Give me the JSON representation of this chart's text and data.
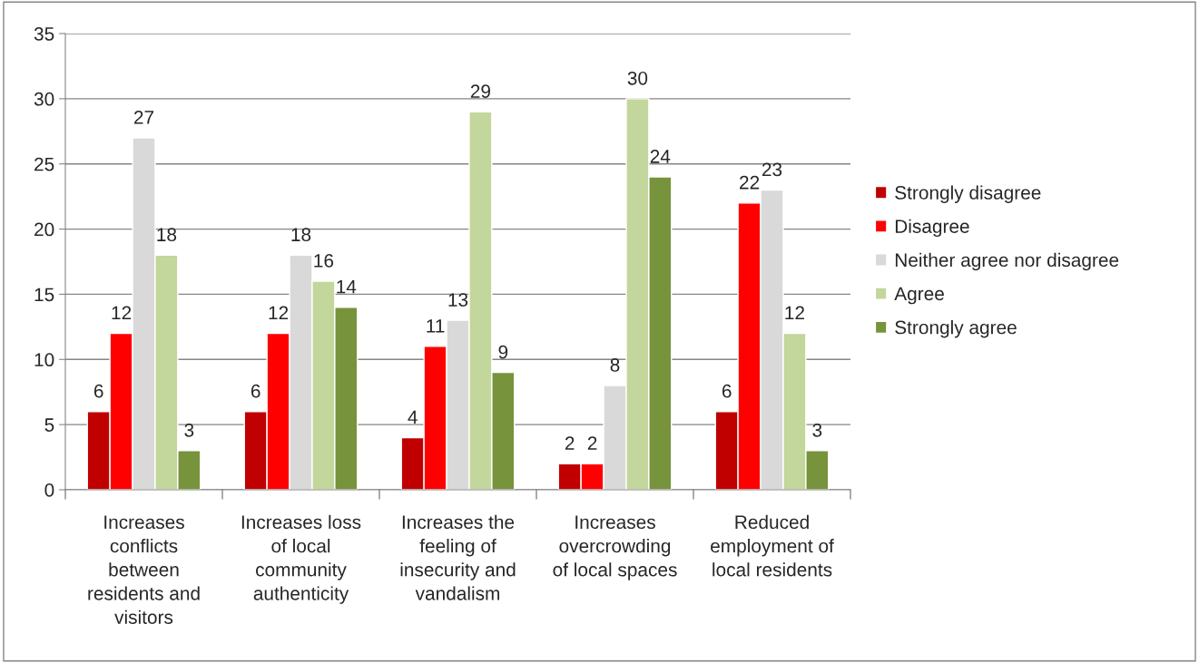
{
  "chart_data": {
    "type": "bar",
    "categories": [
      "Increases\nconflicts\nbetween\nresidents and\nvisitors",
      "Increases loss\nof local\ncommunity\nauthenticity",
      "Increases the\nfeeling of\ninsecurity and\nvandalism",
      "Increases\novercrowding\nof local spaces",
      "Reduced\nemployment of\nlocal residents"
    ],
    "series": [
      {
        "name": "Strongly disagree",
        "color": "#c00000",
        "values": [
          6,
          6,
          4,
          2,
          6
        ]
      },
      {
        "name": "Disagree",
        "color": "#ff0000",
        "values": [
          12,
          12,
          11,
          2,
          22
        ]
      },
      {
        "name": "Neither agree nor disagree",
        "color": "#d9d9d9",
        "values": [
          27,
          18,
          13,
          8,
          23
        ]
      },
      {
        "name": "Agree",
        "color": "#c3d69b",
        "values": [
          18,
          16,
          29,
          30,
          12
        ]
      },
      {
        "name": "Strongly agree",
        "color": "#77933c",
        "values": [
          3,
          14,
          9,
          24,
          3
        ]
      }
    ],
    "ylim": [
      0,
      35
    ],
    "yticks": [
      0,
      5,
      10,
      15,
      20,
      25,
      30,
      35
    ],
    "grid": "y",
    "legend": "right",
    "data_labels": true
  }
}
